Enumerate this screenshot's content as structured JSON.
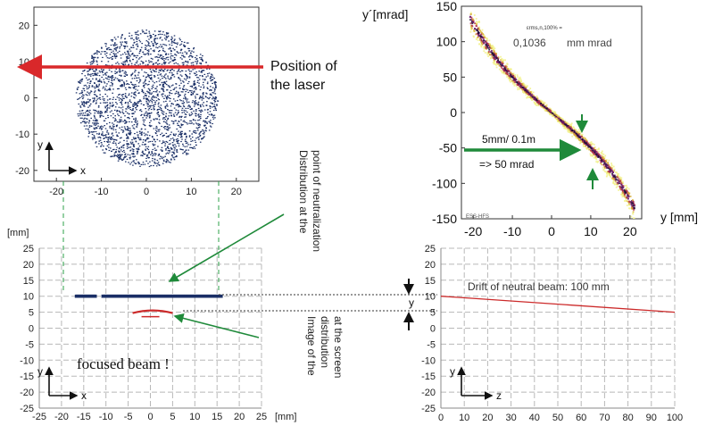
{
  "labels": {
    "position_laser_line1": "Position of",
    "position_laser_line2": "the laser",
    "dist_neutral_line1": "Distribution at the",
    "dist_neutral_line2": "point of neutralization",
    "image_dist_line1": "Image of the",
    "image_dist_line2": "distribution",
    "image_dist_line3": "at the screen",
    "focused_beam": "focused beam !",
    "drift": "Drift of neutral beam: 100 mm",
    "emittance_sub": "εrms,n,100% =",
    "emittance_value": "0,1036",
    "emittance_unit": "mm mrad",
    "arrow_label1": "5mm/ 0.1m",
    "arrow_label2": "=> 50 mrad",
    "y_gap": "y",
    "watermark": "ESS-HFS"
  },
  "chart_data": [
    {
      "type": "scatter",
      "panel": "beam-distribution",
      "axis_x_arrow": "x",
      "axis_y_arrow": "y",
      "xlim": [
        -25,
        25
      ],
      "ylim": [
        -23,
        25
      ],
      "xticks": [
        "-20",
        "-10",
        "0",
        "10",
        "20"
      ],
      "yticks": [
        "20",
        "10",
        "0",
        "-10",
        "-20"
      ],
      "xtick_values": [
        -20,
        -10,
        0,
        10,
        20
      ],
      "ytick_values": [
        20,
        10,
        0,
        -10,
        -20
      ],
      "series": [
        {
          "shape": "ellipse",
          "center": [
            0,
            0
          ],
          "semi_axis_x": 15.5,
          "semi_axis_y": 18.5,
          "color": "#1a2f66"
        }
      ],
      "laser_position_y": 10
    },
    {
      "type": "scatter",
      "panel": "phase-space",
      "ylabel": "y´[mrad]",
      "xlabel": "y [mm]",
      "xlim": [
        -23,
        23
      ],
      "ylim": [
        -150,
        150
      ],
      "xticks": [
        "-20",
        "-10",
        "0",
        "10",
        "20"
      ],
      "yticks": [
        "150",
        "100",
        "50",
        "0",
        "-50",
        "-100",
        "-150"
      ],
      "xtick_values": [
        -20,
        -10,
        0,
        10,
        20
      ],
      "ytick_values": [
        150,
        100,
        50,
        0,
        -50,
        -100,
        -150
      ],
      "colors": [
        "#f2f28c",
        "#d8b23a",
        "#b0304a",
        "#6a1a6a",
        "#1b0e30"
      ]
    },
    {
      "type": "scatter",
      "panel": "focused-image",
      "axis_x_arrow": "x",
      "axis_y_arrow": "y",
      "xunit": "[mm]",
      "yunit": "[mm]",
      "xlim": [
        -25,
        25
      ],
      "ylim": [
        -25,
        25
      ],
      "xticks": [
        "-25",
        "-20",
        "-15",
        "-10",
        "-5",
        "0",
        "5",
        "10",
        "15",
        "20",
        "25"
      ],
      "yticks": [
        "25",
        "20",
        "15",
        "10",
        "5",
        "0",
        "-5",
        "-10",
        "-15",
        "-20",
        "-25"
      ],
      "xtick_values": [
        -25,
        -20,
        -15,
        -10,
        -5,
        0,
        5,
        10,
        15,
        20,
        25
      ],
      "ytick_values": [
        25,
        20,
        15,
        10,
        5,
        0,
        -5,
        -10,
        -15,
        -20,
        -25
      ],
      "series": [
        {
          "name": "",
          "kind": "points",
          "color": "#1a2f66",
          "y": 10,
          "x_from": -17,
          "x_to": 16
        },
        {
          "name": "",
          "kind": "arc",
          "color": "#cc2a2a",
          "y": 5,
          "x_from": -4,
          "x_to": 5
        }
      ]
    },
    {
      "type": "line",
      "panel": "drift",
      "axis_x_arrow": "z",
      "axis_y_arrow": "y",
      "xlim": [
        0,
        100
      ],
      "ylim": [
        -25,
        25
      ],
      "xticks": [
        "0",
        "10",
        "20",
        "30",
        "40",
        "50",
        "60",
        "70",
        "80",
        "90",
        "100"
      ],
      "yticks": [
        "25",
        "20",
        "15",
        "10",
        "5",
        "0",
        "-5",
        "-10",
        "-15",
        "-20",
        "-25"
      ],
      "xtick_values": [
        0,
        10,
        20,
        30,
        40,
        50,
        60,
        70,
        80,
        90,
        100
      ],
      "ytick_values": [
        25,
        20,
        15,
        10,
        5,
        0,
        -5,
        -10,
        -15,
        -20,
        -25
      ],
      "series": [
        {
          "name": "",
          "color": "#cc2a2a",
          "x": [
            0,
            100
          ],
          "y": [
            10,
            5
          ]
        }
      ]
    }
  ]
}
